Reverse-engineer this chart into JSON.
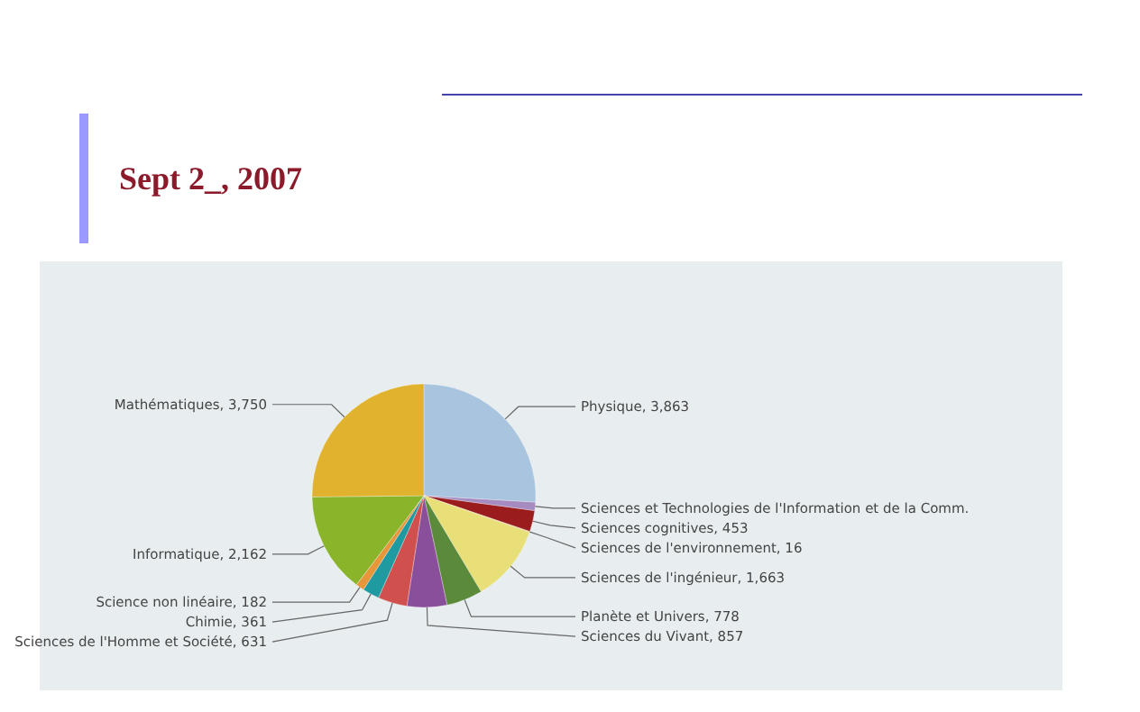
{
  "chart_data": {
    "type": "pie",
    "title": "Sept 2_, 2007",
    "categories": [
      "Physique",
      "Sciences et Technologies de l'Information et de la Comm.",
      "Sciences cognitives",
      "Sciences de l'environnement",
      "Sciences de l'ingénieur",
      "Planète et Univers",
      "Sciences du Vivant",
      "Sciences de l'Homme et Société",
      "Chimie",
      "Science non linéaire",
      "Informatique",
      "Mathématiques"
    ],
    "values": [
      3863,
      180,
      453,
      16,
      1663,
      778,
      857,
      631,
      361,
      182,
      2162,
      3750
    ],
    "value_labels": [
      "3,863",
      null,
      "453",
      "16",
      "1,663",
      "778",
      "857",
      "631",
      "361",
      "182",
      "2,162",
      "3,750"
    ],
    "colors": [
      "#a9c4de",
      "#a58bc0",
      "#9b1c1c",
      "#c9a05a",
      "#e8df78",
      "#5a8a3a",
      "#8a4f9a",
      "#d0504e",
      "#1f9aa0",
      "#e8963a",
      "#8ab52a",
      "#e0b22e"
    ]
  }
}
